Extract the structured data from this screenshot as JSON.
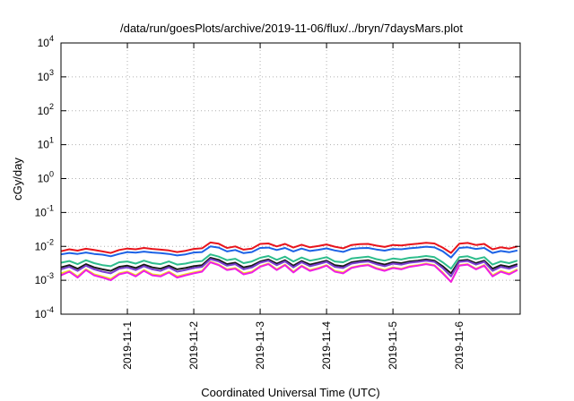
{
  "chart_data": {
    "type": "line",
    "title": "/data/run/goesPlots/archive/2019-11-06/flux/../bryn/7daysMars.plot",
    "xlabel": "Coordinated Universal Time (UTC)",
    "ylabel": "cGy/day",
    "y_scale": "log",
    "ylim": [
      0.0001,
      10000
    ],
    "xlim": [
      "2019-10-31T00:00",
      "2019-11-06T22:00"
    ],
    "grid": true,
    "y_ticks": [
      {
        "value": 0.0001,
        "base": "10",
        "exp": "-4"
      },
      {
        "value": 0.001,
        "base": "10",
        "exp": "-3"
      },
      {
        "value": 0.01,
        "base": "10",
        "exp": "-2"
      },
      {
        "value": 0.1,
        "base": "10",
        "exp": "-1"
      },
      {
        "value": 1,
        "base": "10",
        "exp": "0"
      },
      {
        "value": 10,
        "base": "10",
        "exp": "1"
      },
      {
        "value": 100,
        "base": "10",
        "exp": "2"
      },
      {
        "value": 1000,
        "base": "10",
        "exp": "3"
      },
      {
        "value": 10000,
        "base": "10",
        "exp": "4"
      }
    ],
    "x_ticks": [
      {
        "value": "2019-11-01T00:00",
        "label": "2019-11-1"
      },
      {
        "value": "2019-11-02T00:00",
        "label": "2019-11-2"
      },
      {
        "value": "2019-11-03T00:00",
        "label": "2019-11-3"
      },
      {
        "value": "2019-11-04T00:00",
        "label": "2019-11-4"
      },
      {
        "value": "2019-11-05T00:00",
        "label": "2019-11-5"
      },
      {
        "value": "2019-11-06T00:00",
        "label": "2019-11-6"
      }
    ],
    "x": [
      "2019-10-31T00:00",
      "2019-10-31T03:00",
      "2019-10-31T06:00",
      "2019-10-31T09:00",
      "2019-10-31T12:00",
      "2019-10-31T15:00",
      "2019-10-31T18:00",
      "2019-10-31T21:00",
      "2019-11-01T00:00",
      "2019-11-01T03:00",
      "2019-11-01T06:00",
      "2019-11-01T09:00",
      "2019-11-01T12:00",
      "2019-11-01T15:00",
      "2019-11-01T18:00",
      "2019-11-01T21:00",
      "2019-11-02T00:00",
      "2019-11-02T03:00",
      "2019-11-02T06:00",
      "2019-11-02T09:00",
      "2019-11-02T12:00",
      "2019-11-02T15:00",
      "2019-11-02T18:00",
      "2019-11-02T21:00",
      "2019-11-03T00:00",
      "2019-11-03T03:00",
      "2019-11-03T06:00",
      "2019-11-03T09:00",
      "2019-11-03T12:00",
      "2019-11-03T15:00",
      "2019-11-03T18:00",
      "2019-11-03T21:00",
      "2019-11-04T00:00",
      "2019-11-04T03:00",
      "2019-11-04T06:00",
      "2019-11-04T09:00",
      "2019-11-04T12:00",
      "2019-11-04T15:00",
      "2019-11-04T18:00",
      "2019-11-04T21:00",
      "2019-11-05T00:00",
      "2019-11-05T03:00",
      "2019-11-05T06:00",
      "2019-11-05T09:00",
      "2019-11-05T12:00",
      "2019-11-05T15:00",
      "2019-11-05T18:00",
      "2019-11-05T21:00",
      "2019-11-06T00:00",
      "2019-11-06T03:00",
      "2019-11-06T06:00",
      "2019-11-06T09:00",
      "2019-11-06T12:00",
      "2019-11-06T15:00",
      "2019-11-06T18:00",
      "2019-11-06T21:00"
    ],
    "series": [
      {
        "color": "#e8141c",
        "values": [
          0.0072,
          0.0082,
          0.0075,
          0.0085,
          0.0078,
          0.0071,
          0.0064,
          0.0078,
          0.0086,
          0.0082,
          0.009,
          0.0084,
          0.008,
          0.0076,
          0.0068,
          0.0074,
          0.0084,
          0.0088,
          0.013,
          0.012,
          0.009,
          0.01,
          0.008,
          0.0086,
          0.0118,
          0.0122,
          0.01,
          0.0118,
          0.0092,
          0.0112,
          0.0094,
          0.0102,
          0.0114,
          0.0098,
          0.0088,
          0.011,
          0.0116,
          0.0118,
          0.0105,
          0.0096,
          0.011,
          0.0106,
          0.0114,
          0.012,
          0.0128,
          0.0122,
          0.0092,
          0.0064,
          0.012,
          0.0126,
          0.011,
          0.0118,
          0.0082,
          0.0094,
          0.0086,
          0.01
        ]
      },
      {
        "color": "#1c62e6",
        "values": [
          0.0058,
          0.0064,
          0.006,
          0.0066,
          0.006,
          0.0057,
          0.0051,
          0.006,
          0.0068,
          0.0065,
          0.007,
          0.0066,
          0.0063,
          0.006,
          0.0054,
          0.0058,
          0.0066,
          0.0068,
          0.01,
          0.0092,
          0.0071,
          0.0078,
          0.0063,
          0.0068,
          0.009,
          0.0092,
          0.0078,
          0.009,
          0.0071,
          0.0086,
          0.0073,
          0.0079,
          0.0087,
          0.0076,
          0.0069,
          0.0084,
          0.0089,
          0.009,
          0.0081,
          0.0075,
          0.0084,
          0.0082,
          0.0088,
          0.0092,
          0.0098,
          0.0093,
          0.0072,
          0.0047,
          0.009,
          0.0094,
          0.0084,
          0.009,
          0.0064,
          0.0073,
          0.0067,
          0.0076
        ]
      },
      {
        "color": "#2ebd8c",
        "values": [
          0.0033,
          0.0037,
          0.003,
          0.0039,
          0.0032,
          0.0028,
          0.0026,
          0.0034,
          0.0036,
          0.0031,
          0.0038,
          0.0032,
          0.003,
          0.0036,
          0.0029,
          0.0031,
          0.0035,
          0.0037,
          0.0058,
          0.005,
          0.0039,
          0.0043,
          0.0032,
          0.0036,
          0.0046,
          0.0052,
          0.004,
          0.005,
          0.0036,
          0.0047,
          0.0038,
          0.0042,
          0.0048,
          0.0036,
          0.0034,
          0.0044,
          0.0047,
          0.005,
          0.0042,
          0.0038,
          0.0044,
          0.0041,
          0.0046,
          0.0048,
          0.0052,
          0.0048,
          0.0034,
          0.0022,
          0.0048,
          0.0051,
          0.0042,
          0.0048,
          0.0029,
          0.0036,
          0.0032,
          0.0038
        ]
      },
      {
        "color": "#1a1a1a",
        "values": [
          0.0024,
          0.0028,
          0.0022,
          0.003,
          0.0024,
          0.0021,
          0.0019,
          0.0025,
          0.0027,
          0.0023,
          0.0029,
          0.0024,
          0.0022,
          0.0027,
          0.0021,
          0.0023,
          0.0026,
          0.0028,
          0.0046,
          0.004,
          0.003,
          0.0033,
          0.0024,
          0.0027,
          0.0036,
          0.0041,
          0.0031,
          0.0039,
          0.0027,
          0.0037,
          0.0029,
          0.0033,
          0.0038,
          0.0028,
          0.0026,
          0.0034,
          0.0037,
          0.0039,
          0.0033,
          0.0029,
          0.0034,
          0.0032,
          0.0036,
          0.0038,
          0.0041,
          0.0038,
          0.0026,
          0.0016,
          0.0038,
          0.004,
          0.0032,
          0.0038,
          0.0022,
          0.0028,
          0.0025,
          0.003
        ]
      },
      {
        "color": "#7a3fd1",
        "values": [
          0.0021,
          0.0025,
          0.0019,
          0.0027,
          0.0021,
          0.0018,
          0.0016,
          0.0022,
          0.0024,
          0.002,
          0.0026,
          0.0021,
          0.0019,
          0.0024,
          0.0018,
          0.002,
          0.0023,
          0.0025,
          0.0042,
          0.0036,
          0.0027,
          0.003,
          0.0021,
          0.0024,
          0.0033,
          0.0038,
          0.0028,
          0.0036,
          0.0024,
          0.0034,
          0.0026,
          0.003,
          0.0035,
          0.0025,
          0.0023,
          0.0031,
          0.0034,
          0.0036,
          0.003,
          0.0026,
          0.0031,
          0.0029,
          0.0033,
          0.0035,
          0.0038,
          0.0035,
          0.0023,
          0.0013,
          0.0035,
          0.0037,
          0.0029,
          0.0035,
          0.0019,
          0.0025,
          0.0022,
          0.0027
        ]
      },
      {
        "color": "#f0e11c",
        "values": [
          0.0016,
          0.0019,
          0.0013,
          0.0021,
          0.0015,
          0.0013,
          0.0011,
          0.0016,
          0.0018,
          0.0014,
          0.002,
          0.0015,
          0.0014,
          0.0018,
          0.0013,
          0.0015,
          0.0017,
          0.0019,
          0.0035,
          0.0029,
          0.0021,
          0.0023,
          0.0016,
          0.0018,
          0.0026,
          0.0031,
          0.0021,
          0.0029,
          0.0018,
          0.0027,
          0.002,
          0.0023,
          0.0028,
          0.0019,
          0.0017,
          0.0024,
          0.0027,
          0.0029,
          0.0023,
          0.002,
          0.0024,
          0.0022,
          0.0026,
          0.0028,
          0.0031,
          0.0028,
          0.0017,
          0.0009,
          0.0028,
          0.003,
          0.0022,
          0.0028,
          0.0014,
          0.0019,
          0.0016,
          0.0021
        ]
      },
      {
        "color": "#f01ee6",
        "values": [
          0.0014,
          0.0018,
          0.0012,
          0.002,
          0.0014,
          0.0012,
          0.001,
          0.0015,
          0.0017,
          0.0013,
          0.0019,
          0.0014,
          0.0013,
          0.0017,
          0.0012,
          0.0014,
          0.0016,
          0.0018,
          0.0034,
          0.0028,
          0.002,
          0.0022,
          0.0015,
          0.0017,
          0.0025,
          0.003,
          0.002,
          0.0028,
          0.0017,
          0.0026,
          0.0019,
          0.0022,
          0.0027,
          0.0018,
          0.0016,
          0.0023,
          0.0026,
          0.0028,
          0.0022,
          0.0019,
          0.0023,
          0.0021,
          0.0025,
          0.0027,
          0.003,
          0.0027,
          0.0016,
          0.0009,
          0.0027,
          0.0029,
          0.0021,
          0.0027,
          0.0013,
          0.0018,
          0.0015,
          0.002
        ]
      }
    ]
  }
}
